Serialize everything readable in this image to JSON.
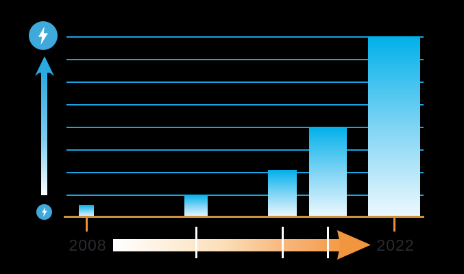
{
  "background": "#000000",
  "labels": {
    "start_year": "2008",
    "end_year": "2022"
  },
  "icons": {
    "top_badge": "lightning-bolt-icon-large",
    "bottom_badge": "lightning-bolt-icon-small",
    "vertical": "up-arrow-icon",
    "horizontal": "timeline-right-arrow-icon"
  },
  "colors": {
    "background": "#000000",
    "gridline": "#18a5e5",
    "bar_gradient_top": "#00b0ea",
    "bar_gradient_bottom": "#eef9fe",
    "baseline": "#cf9340",
    "badge_circle": "#3fa9dc",
    "vertical_arrow": "#29abe2",
    "timeline_gradient_start": "#ffffff",
    "timeline_gradient_end": "#f49b47",
    "timeline_arrowhead": "#f2953f",
    "year_text": "#2b2b30",
    "tick_white": "#ffffff",
    "tick_orange": "#e8923a"
  },
  "chart_data": {
    "type": "bar",
    "title": "",
    "xlabel": "",
    "ylabel": "",
    "categories": [
      "2008",
      "",
      "",
      "",
      "2022"
    ],
    "values": [
      0.55,
      1,
      2.1,
      4,
      8
    ],
    "ylim": [
      0,
      8
    ],
    "gridline_count": 8,
    "grid": "on",
    "legend": "none",
    "annotations": [
      "small lightning-bolt badge at axis origin, large lightning-bolt badge at top of upward arrow (implies growth in energy/power)",
      "orange timeline arrow runs left-to-right from 2008 to 2022 beneath the bars",
      "bars double in height from one to the next (exponential growth)"
    ]
  }
}
